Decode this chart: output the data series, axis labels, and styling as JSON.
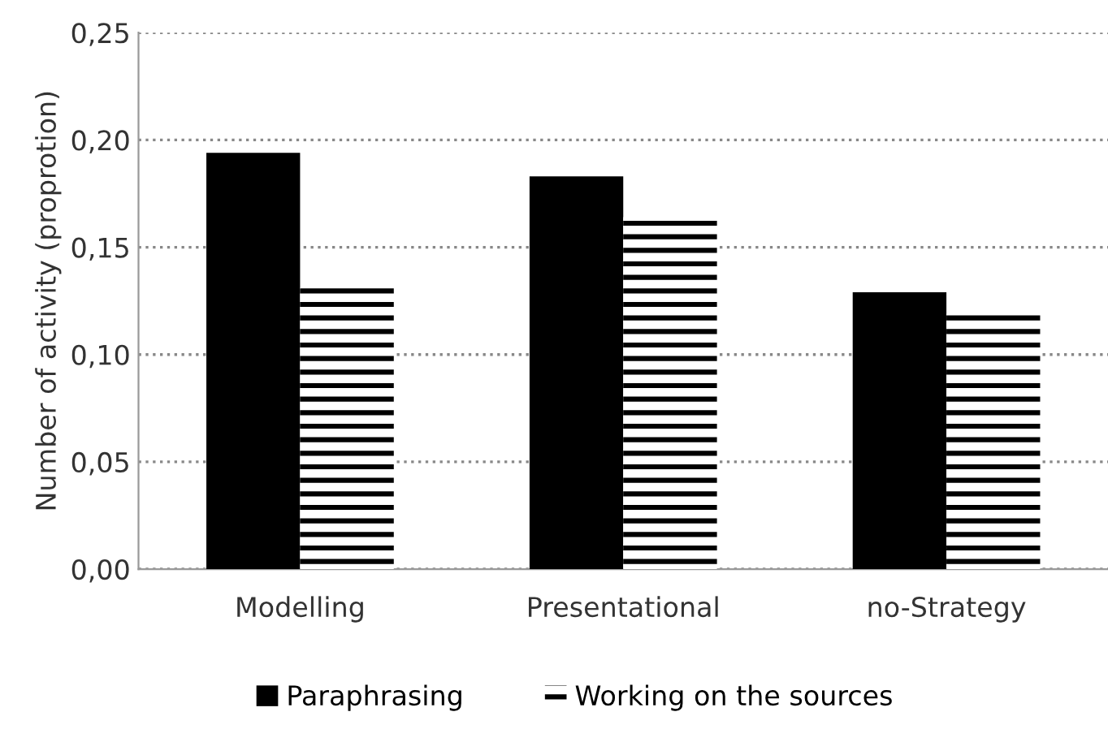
{
  "chart_data": {
    "type": "bar",
    "ylabel": "Number of activity (proprotion)",
    "categories": [
      "Modelling",
      "Presentational",
      "no-Strategy"
    ],
    "series": [
      {
        "name": "Paraphrasing",
        "color": "#000000",
        "values": [
          0.194,
          0.183,
          0.129
        ]
      },
      {
        "name": "Working on the sources",
        "color": "#000000",
        "values": [
          0.131,
          0.164,
          0.119
        ]
      }
    ],
    "ylim": [
      0,
      0.25
    ],
    "yticks": [
      {
        "value": 0,
        "label": "0,00"
      },
      {
        "value": 0.05,
        "label": "0,05"
      },
      {
        "value": 0.1,
        "label": "0,10"
      },
      {
        "value": 0.15,
        "label": "0,15"
      },
      {
        "value": 0.2,
        "label": "0,20"
      },
      {
        "value": 0.25,
        "label": "0,25"
      }
    ],
    "grid": "y",
    "legend": "bottom"
  }
}
